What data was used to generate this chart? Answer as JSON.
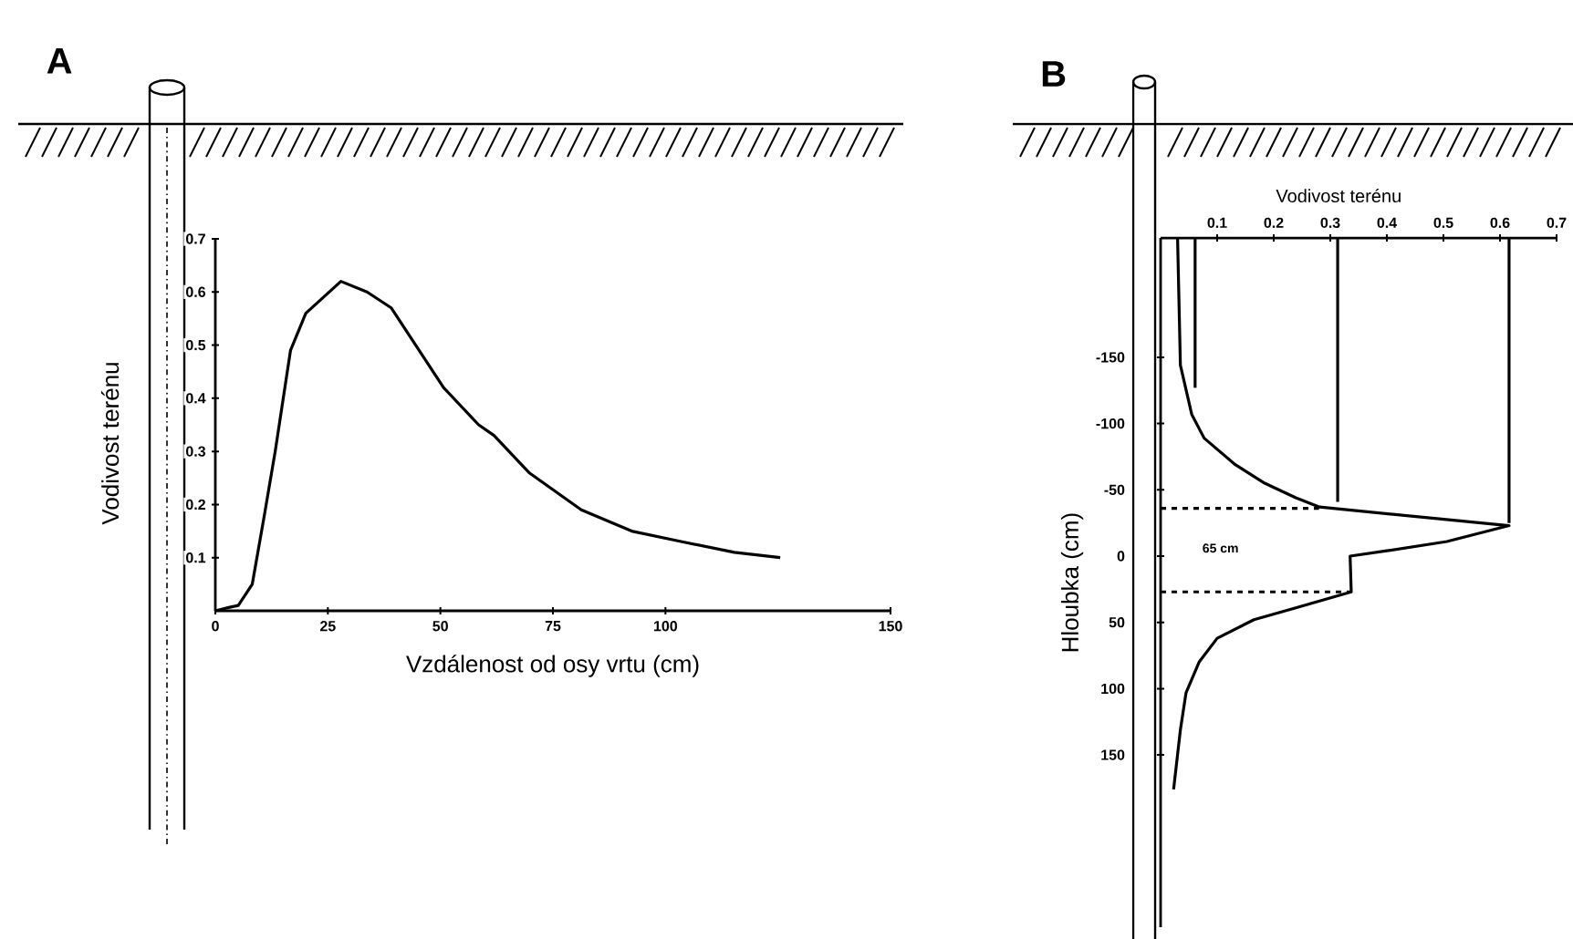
{
  "chart_data": [
    {
      "type": "line",
      "title": "A",
      "xlabel": "Vzdálenost od osy vrtu (cm)",
      "ylabel": "Vodivost terénu",
      "x": [
        0,
        3.4,
        5.1,
        8.2,
        10.9,
        13.3,
        16.7,
        20.1,
        27.9,
        33.7,
        39.1,
        50.7,
        58.5,
        61.9,
        69.7,
        81.3,
        92.5,
        103.7,
        115.3,
        125.5
      ],
      "values": [
        0,
        0.007,
        0.01,
        0.05,
        0.18,
        0.3,
        0.49,
        0.56,
        0.62,
        0.6,
        0.57,
        0.42,
        0.35,
        0.33,
        0.26,
        0.19,
        0.15,
        0.13,
        0.11,
        0.1
      ],
      "color": "#000000",
      "xlim": [
        0,
        150
      ],
      "ylim": [
        0,
        0.7
      ],
      "xticks": [
        0,
        25,
        50,
        75,
        100,
        150
      ],
      "yticks": [
        0.1,
        0.2,
        0.3,
        0.4,
        0.5,
        0.6,
        0.7
      ]
    },
    {
      "type": "line",
      "title": "B",
      "xlabel": "Vodivost terénu",
      "ylabel": "Hloubka (cm)",
      "series": [
        {
          "x": [
            0.03,
            0.035,
            0.055,
            0.077,
            0.132,
            0.184,
            0.239,
            0.281,
            0.616,
            0.506,
            0.4,
            0.335,
            0.337,
            0.239,
            0.165,
            0.1,
            0.068,
            0.045,
            0.035,
            0.023
          ],
          "values": [
            -240,
            -144,
            -107,
            -89,
            -69,
            -55,
            -44,
            -37,
            -23,
            -11,
            -4,
            0,
            27,
            39,
            48,
            62,
            80,
            103,
            131,
            176
          ],
          "color": "#000000"
        },
        {
          "x": [
            0.061,
            0.061
          ],
          "values": [
            -240,
            -127
          ],
          "color": "#000000"
        },
        {
          "x": [
            0.313,
            0.313
          ],
          "values": [
            -240,
            -41
          ],
          "color": "#000000"
        },
        {
          "x": [
            0.616,
            0.616
          ],
          "values": [
            -240,
            -25
          ],
          "color": "#000000"
        },
        {
          "x": [
            0,
            0.28
          ],
          "values": [
            -36,
            -36
          ],
          "color": "#000000",
          "line_style": "dashed"
        },
        {
          "x": [
            0,
            0.335
          ],
          "values": [
            27,
            27
          ],
          "color": "#000000",
          "line_style": "dashed"
        }
      ],
      "xlim": [
        0,
        0.7
      ],
      "ylim": [
        280,
        -240
      ],
      "xticks": [
        0.1,
        0.2,
        0.3,
        0.4,
        0.5,
        0.6,
        0.7
      ],
      "yticks": [
        -150,
        -100,
        -50,
        0,
        50,
        100,
        150
      ],
      "annotations": [
        "65 cm"
      ]
    }
  ]
}
